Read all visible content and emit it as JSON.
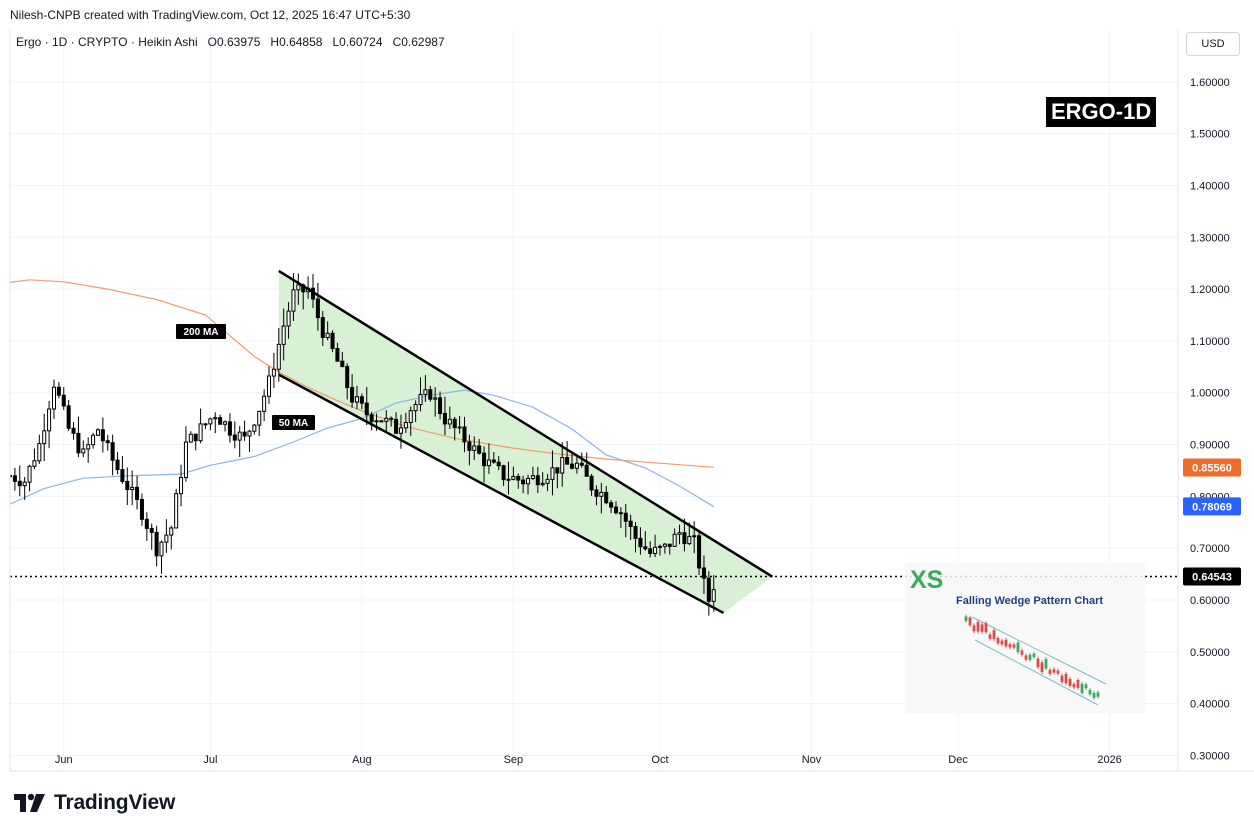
{
  "header": {
    "attribution": "Nilesh-CNPB created with TradingView.com, Oct 12, 2025 16:47 UTC+5:30"
  },
  "legend": {
    "symbol": "Ergo · 1D · CRYPTO · Heikin Ashi",
    "open_label": "O",
    "open": "0.63975",
    "high_label": "H",
    "high": "0.64858",
    "low_label": "L",
    "low": "0.60724",
    "close_label": "C",
    "close": "0.62987"
  },
  "currency": "USD",
  "badge": "ERGO-1D",
  "branding": {
    "name": "TradingView"
  },
  "inset": {
    "logo": "XS",
    "title": "Falling Wedge Pattern Chart"
  },
  "colors": {
    "up_candle": "#ffffff",
    "down_candle": "#000000",
    "wedge_fill": "#d4efcf",
    "ma200": "#f29a6e",
    "ma50": "#8fb3e8",
    "ma200_tag": "#ef6c2a",
    "ma50_tag": "#2962ff",
    "price_tag": "#000000",
    "xs_green": "#3aaa5c",
    "inset_title": "#1f3f7a"
  },
  "chart_data": {
    "type": "candlestick",
    "title": "ERGO-1D",
    "xlabel": "",
    "ylabel": "",
    "x_ticks": [
      "Jun",
      "Jul",
      "Aug",
      "Sep",
      "Oct",
      "Nov",
      "Dec",
      "2026"
    ],
    "y_ticks": [
      "1.60000",
      "1.50000",
      "1.40000",
      "1.30000",
      "1.20000",
      "1.10000",
      "1.00000",
      "0.90000",
      "0.80000",
      "0.70000",
      "0.60000",
      "0.50000",
      "0.40000",
      "0.30000"
    ],
    "ylim": [
      0.27,
      1.7
    ],
    "xlim": [
      "2025-05-21",
      "2026-01-15"
    ],
    "grid": true,
    "scale_tags": [
      {
        "name": "200 MA",
        "value": "0.85560"
      },
      {
        "name": "50 MA",
        "value": "0.78069"
      },
      {
        "name": "Last price",
        "value": "0.64543"
      }
    ],
    "last_price_line": 0.64543,
    "wedge": {
      "upper": [
        [
          "2025-07-15",
          1.235
        ],
        [
          "2025-10-24",
          0.645
        ]
      ],
      "lower": [
        [
          "2025-07-15",
          1.035
        ],
        [
          "2025-10-14",
          0.575
        ]
      ]
    },
    "series": [
      {
        "name": "200 MA",
        "type": "line",
        "points": [
          [
            "2025-05-21",
            1.213
          ],
          [
            "2025-05-25",
            1.218
          ],
          [
            "2025-06-01",
            1.214
          ],
          [
            "2025-06-10",
            1.2
          ],
          [
            "2025-06-20",
            1.18
          ],
          [
            "2025-06-30",
            1.15
          ],
          [
            "2025-07-05",
            1.11
          ],
          [
            "2025-07-10",
            1.07
          ],
          [
            "2025-07-15",
            1.04
          ],
          [
            "2025-07-20",
            1.015
          ],
          [
            "2025-07-25",
            0.993
          ],
          [
            "2025-08-01",
            0.965
          ],
          [
            "2025-08-10",
            0.935
          ],
          [
            "2025-08-20",
            0.912
          ],
          [
            "2025-09-01",
            0.893
          ],
          [
            "2025-09-10",
            0.882
          ],
          [
            "2025-09-20",
            0.872
          ],
          [
            "2025-10-01",
            0.864
          ],
          [
            "2025-10-12",
            0.856
          ]
        ]
      },
      {
        "name": "50 MA",
        "type": "line",
        "points": [
          [
            "2025-05-21",
            0.785
          ],
          [
            "2025-05-28",
            0.815
          ],
          [
            "2025-06-05",
            0.835
          ],
          [
            "2025-06-15",
            0.84
          ],
          [
            "2025-06-25",
            0.843
          ],
          [
            "2025-07-01",
            0.86
          ],
          [
            "2025-07-10",
            0.877
          ],
          [
            "2025-07-18",
            0.905
          ],
          [
            "2025-07-25",
            0.932
          ],
          [
            "2025-08-01",
            0.95
          ],
          [
            "2025-08-08",
            0.98
          ],
          [
            "2025-08-15",
            0.995
          ],
          [
            "2025-08-22",
            1.005
          ],
          [
            "2025-08-28",
            0.995
          ],
          [
            "2025-09-05",
            0.972
          ],
          [
            "2025-09-13",
            0.93
          ],
          [
            "2025-09-20",
            0.88
          ],
          [
            "2025-09-28",
            0.855
          ],
          [
            "2025-10-05",
            0.82
          ],
          [
            "2025-10-12",
            0.78
          ]
        ]
      },
      {
        "name": "Ergo",
        "type": "ohlc",
        "close_path": [
          [
            "2025-05-21",
            0.84
          ],
          [
            "2025-05-24",
            0.83
          ],
          [
            "2025-05-27",
            0.9
          ],
          [
            "2025-05-30",
            1.02
          ],
          [
            "2025-06-02",
            0.93
          ],
          [
            "2025-06-05",
            0.88
          ],
          [
            "2025-06-08",
            0.93
          ],
          [
            "2025-06-11",
            0.87
          ],
          [
            "2025-06-14",
            0.82
          ],
          [
            "2025-06-17",
            0.77
          ],
          [
            "2025-06-20",
            0.7
          ],
          [
            "2025-06-23",
            0.74
          ],
          [
            "2025-06-26",
            0.9
          ],
          [
            "2025-06-29",
            0.93
          ],
          [
            "2025-07-02",
            0.96
          ],
          [
            "2025-07-05",
            0.93
          ],
          [
            "2025-07-08",
            0.91
          ],
          [
            "2025-07-11",
            0.97
          ],
          [
            "2025-07-13",
            1.02
          ],
          [
            "2025-07-16",
            1.13
          ],
          [
            "2025-07-18",
            1.19
          ],
          [
            "2025-07-21",
            1.2
          ],
          [
            "2025-07-24",
            1.12
          ],
          [
            "2025-07-27",
            1.06
          ],
          [
            "2025-07-30",
            0.99
          ],
          [
            "2025-08-02",
            0.96
          ],
          [
            "2025-08-05",
            0.95
          ],
          [
            "2025-08-08",
            0.93
          ],
          [
            "2025-08-11",
            0.97
          ],
          [
            "2025-08-15",
            1.0
          ],
          [
            "2025-08-18",
            0.95
          ],
          [
            "2025-08-22",
            0.91
          ],
          [
            "2025-08-26",
            0.87
          ],
          [
            "2025-08-30",
            0.84
          ],
          [
            "2025-09-03",
            0.83
          ],
          [
            "2025-09-07",
            0.84
          ],
          [
            "2025-09-11",
            0.86
          ],
          [
            "2025-09-14",
            0.86
          ],
          [
            "2025-09-17",
            0.82
          ],
          [
            "2025-09-20",
            0.8
          ],
          [
            "2025-09-23",
            0.77
          ],
          [
            "2025-09-26",
            0.72
          ],
          [
            "2025-09-29",
            0.69
          ],
          [
            "2025-10-02",
            0.7
          ],
          [
            "2025-10-05",
            0.73
          ],
          [
            "2025-10-08",
            0.71
          ],
          [
            "2025-10-10",
            0.63
          ],
          [
            "2025-10-11",
            0.6
          ],
          [
            "2025-10-12",
            0.63
          ]
        ]
      }
    ]
  }
}
